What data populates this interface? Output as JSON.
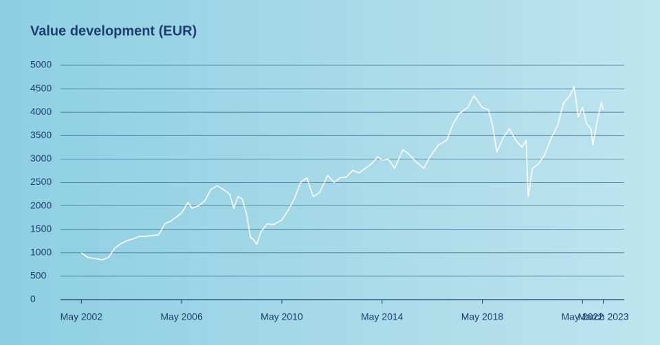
{
  "chart_data": {
    "type": "line",
    "title": "Value development (EUR)",
    "x": [
      "2002-05",
      "2002-08",
      "2002-11",
      "2003-03",
      "2003-06",
      "2003-09",
      "2003-12",
      "2004-03",
      "2004-06",
      "2004-09",
      "2004-12",
      "2005-03",
      "2005-06",
      "2005-09",
      "2005-12",
      "2006-03",
      "2006-05",
      "2006-08",
      "2006-10",
      "2007-01",
      "2007-04",
      "2007-07",
      "2007-10",
      "2008-01",
      "2008-04",
      "2008-06",
      "2008-08",
      "2008-10",
      "2008-12",
      "2009-02",
      "2009-03",
      "2009-05",
      "2009-07",
      "2009-10",
      "2010-01",
      "2010-05",
      "2010-08",
      "2010-11",
      "2011-02",
      "2011-05",
      "2011-08",
      "2011-11",
      "2012-03",
      "2012-06",
      "2012-09",
      "2012-12",
      "2013-03",
      "2013-06",
      "2013-09",
      "2013-12",
      "2014-03",
      "2014-05",
      "2014-08",
      "2014-11",
      "2015-03",
      "2015-06",
      "2015-09",
      "2016-01",
      "2016-04",
      "2016-08",
      "2016-12",
      "2017-03",
      "2017-06",
      "2017-10",
      "2018-01",
      "2018-05",
      "2018-08",
      "2018-10",
      "2018-12",
      "2019-03",
      "2019-06",
      "2019-09",
      "2019-12",
      "2020-02",
      "2020-03",
      "2020-05",
      "2020-08",
      "2020-11",
      "2021-02",
      "2021-05",
      "2021-08",
      "2021-11",
      "2022-01",
      "2022-03",
      "2022-05",
      "2022-07",
      "2022-09",
      "2022-10",
      "2022-12",
      "2023-02",
      "2023-03"
    ],
    "series": [
      {
        "color": "#ffffff",
        "values": [
          1000,
          900,
          880,
          850,
          900,
          1100,
          1200,
          1260,
          1300,
          1350,
          1350,
          1370,
          1380,
          1620,
          1680,
          1780,
          1850,
          2070,
          1950,
          2000,
          2100,
          2350,
          2430,
          2350,
          2250,
          1950,
          2200,
          2150,
          1850,
          1330,
          1300,
          1180,
          1450,
          1620,
          1600,
          1700,
          1900,
          2150,
          2500,
          2600,
          2200,
          2280,
          2650,
          2500,
          2600,
          2620,
          2760,
          2700,
          2800,
          2900,
          3050,
          2980,
          3000,
          2800,
          3200,
          3100,
          2950,
          2800,
          3050,
          3300,
          3400,
          3750,
          3970,
          4100,
          4350,
          4100,
          4050,
          3700,
          3150,
          3450,
          3650,
          3400,
          3250,
          3400,
          2200,
          2800,
          2900,
          3100,
          3450,
          3700,
          4200,
          4350,
          4550,
          3900,
          4100,
          3750,
          3650,
          3300,
          3800,
          4200,
          4050
        ]
      }
    ],
    "xlim": [
      "2001-07",
      "2024-01"
    ],
    "xticks": [
      {
        "value": "2002-05",
        "label": "May 2002"
      },
      {
        "value": "2006-05",
        "label": "May 2006"
      },
      {
        "value": "2010-05",
        "label": "May 2010"
      },
      {
        "value": "2014-05",
        "label": "May 2014"
      },
      {
        "value": "2018-05",
        "label": "May 2018"
      },
      {
        "value": "2022-05",
        "label": "May 2022"
      },
      {
        "value": "2023-03",
        "label": "March 2023"
      }
    ],
    "ylim": [
      0,
      5000
    ],
    "yticks": [
      0,
      500,
      1000,
      1500,
      2000,
      2500,
      3000,
      3500,
      4000,
      4500,
      5000
    ],
    "grid": true
  }
}
